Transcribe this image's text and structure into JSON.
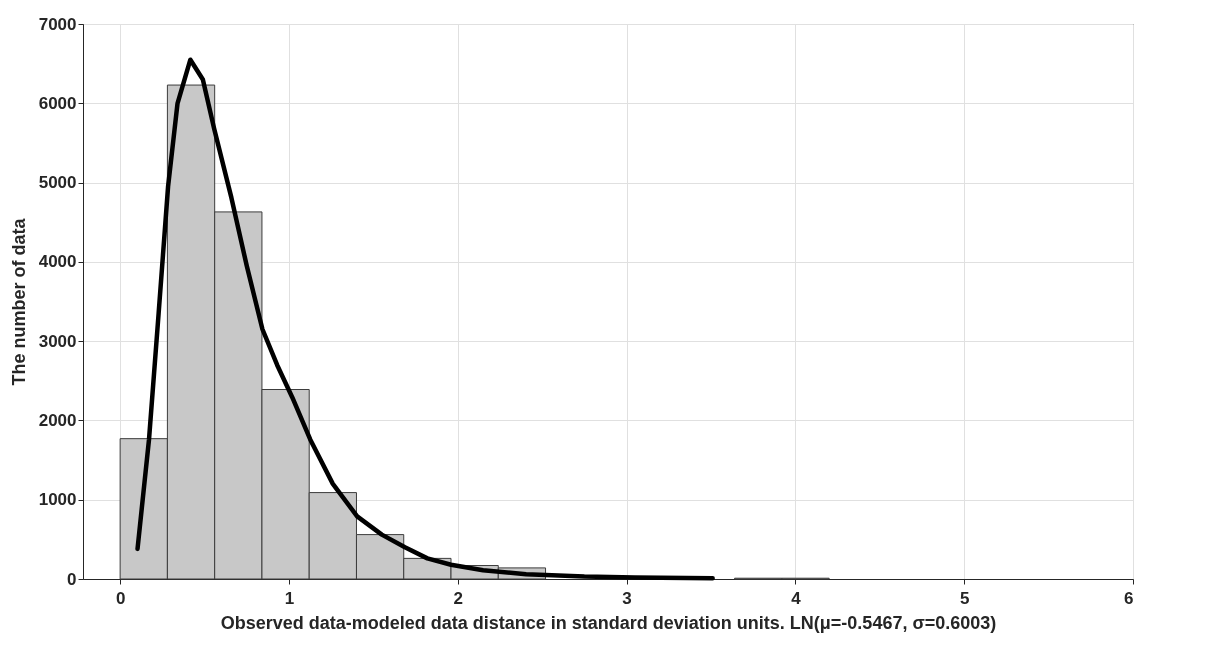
{
  "chart_data": {
    "type": "histogram",
    "xlabel": "Observed data-modeled data distance in standard deviation units. LN(μ=-0.5467, σ=0.6003)",
    "ylabel": "The number of data",
    "series": [
      {
        "color": "#c8c8c8",
        "bins": [
          0,
          0.28,
          0.56,
          0.84,
          1.12,
          1.4,
          1.68,
          1.96,
          2.24,
          2.52,
          2.8,
          3.08,
          3.36,
          3.64,
          3.92,
          4.2,
          4.48,
          4.76,
          5.04,
          5.32,
          5.6
        ],
        "values": [
          1770,
          6230,
          4630,
          2390,
          1090,
          560,
          260,
          170,
          140,
          null,
          null,
          null,
          null,
          10,
          10,
          null,
          null,
          null,
          null,
          null
        ]
      },
      {
        "type": "line",
        "color": "#000000",
        "x": [
          0.103,
          0.171,
          0.228,
          0.284,
          0.34,
          0.416,
          0.49,
          0.557,
          0.659,
          0.75,
          0.843,
          0.93,
          1.02,
          1.126,
          1.26,
          1.404,
          1.55,
          1.687,
          1.82,
          1.96,
          2.15,
          2.405,
          2.75,
          3.05,
          3.51
        ],
        "values": [
          380,
          1760,
          3350,
          4950,
          6000,
          6550,
          6300,
          5680,
          4810,
          3950,
          3150,
          2700,
          2290,
          1760,
          1200,
          790,
          560,
          400,
          260,
          180,
          110,
          60,
          30,
          20,
          10
        ]
      }
    ],
    "xlim": [
      -0.22,
      6
    ],
    "xticks": [
      0,
      1,
      2,
      3,
      4,
      5,
      6
    ],
    "ylim": [
      0,
      7000
    ],
    "yticks": [
      0,
      1000,
      2000,
      3000,
      4000,
      5000,
      6000,
      7000
    ],
    "grid": true
  }
}
